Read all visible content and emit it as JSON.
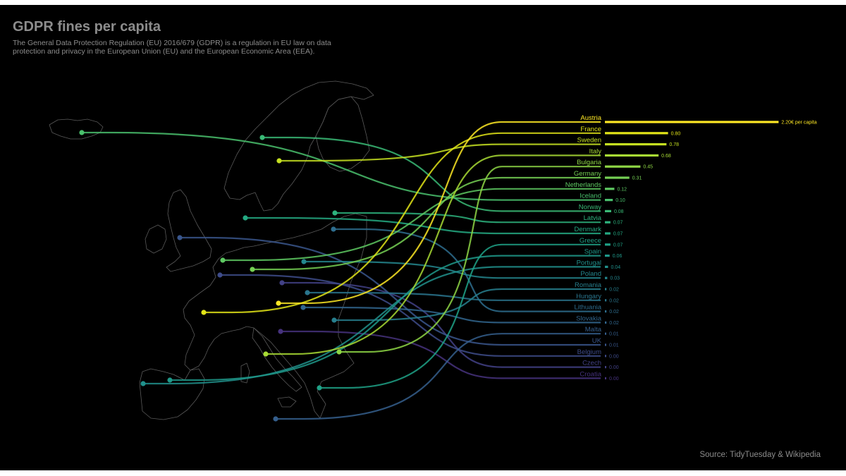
{
  "chart_data": {
    "type": "bar",
    "title": "GDPR fines per capita",
    "subtitle": "The General Data Protection Regulation (EU) 2016/679 (GDPR) is a regulation in EU law on data protection and privacy in the European Union (EU) and the European Economic Area (EEA).",
    "source": "Source: TidyTuesday & Wikipedia",
    "unit_suffix": "€ per capita",
    "categories": [
      "Austria",
      "France",
      "Sweden",
      "Italy",
      "Bulgaria",
      "Germany",
      "Netherlands",
      "Iceland",
      "Norway",
      "Latvia",
      "Denmark",
      "Greece",
      "Spain",
      "Portugal",
      "Poland",
      "Romania",
      "Hungary",
      "Lithuania",
      "Slovakia",
      "Malta",
      "UK",
      "Belgium",
      "Czech",
      "Croatia"
    ],
    "values": [
      2.2,
      0.8,
      0.78,
      0.68,
      0.45,
      0.31,
      0.12,
      0.1,
      0.08,
      0.07,
      0.07,
      0.07,
      0.06,
      0.04,
      0.03,
      0.02,
      0.02,
      0.02,
      0.02,
      0.01,
      0.01,
      0.0,
      0.0,
      0.0
    ],
    "value_labels": [
      "2.20€ per capita",
      "0.80",
      "0.78",
      "0.68",
      "0.45",
      "0.31",
      "0.12",
      "0.10",
      "0.08",
      "0.07",
      "0.07",
      "0.07",
      "0.06",
      "0.04",
      "0.03",
      "0.02",
      "0.02",
      "0.02",
      "0.02",
      "0.01",
      "0.01",
      "0.00",
      "0.00",
      "0.00"
    ],
    "colormap": "viridis",
    "colors": [
      "#fde725",
      "#e2e418",
      "#c5e021",
      "#a8db34",
      "#8ed645",
      "#75d054",
      "#5ec962",
      "#4ac16d",
      "#3aba76",
      "#2db27d",
      "#24aa83",
      "#1fa287",
      "#1f998a",
      "#21918c",
      "#24878e",
      "#277f8e",
      "#2a768e",
      "#2e6d8e",
      "#31668e",
      "#355f8d",
      "#39568c",
      "#3e4c8a",
      "#424186",
      "#46327e"
    ]
  }
}
